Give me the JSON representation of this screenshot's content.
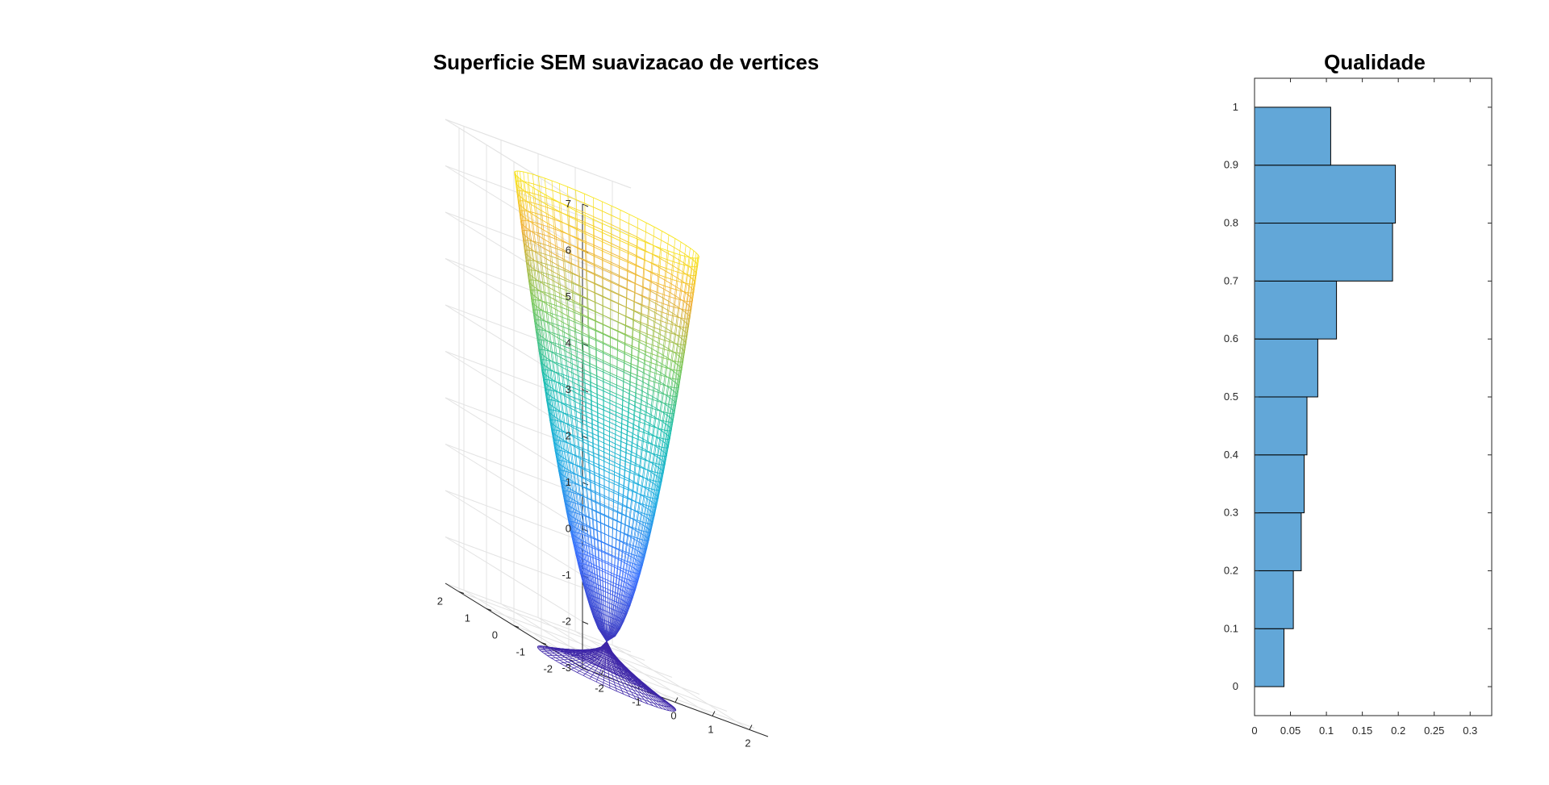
{
  "chart_data": [
    {
      "type": "surface3d",
      "title": "Superficie SEM suavizacao de vertices",
      "xlabel": "",
      "ylabel": "",
      "zlabel": "",
      "xlim": [
        -2.5,
        2.5
      ],
      "ylim": [
        -2.5,
        2.5
      ],
      "zlim": [
        -3,
        7
      ],
      "xticks": [
        -2,
        -1,
        0,
        1,
        2
      ],
      "yticks": [
        -2,
        -1,
        0,
        1,
        2
      ],
      "zticks": [
        -3,
        -2,
        -1,
        0,
        1,
        2,
        3,
        4,
        5,
        6,
        7
      ],
      "grid": true,
      "mesh_style": "wireframe",
      "colormap": "parula",
      "surface": {
        "shape": "goblet",
        "rim_radius": 2.0,
        "rim_height": 6.6,
        "stem_height": -2.6,
        "base_radius": 1.5,
        "base_height": -3.4
      }
    },
    {
      "type": "bar",
      "orientation": "horizontal",
      "title": "Qualidade",
      "xlabel": "",
      "ylabel": "",
      "categories": [
        0.05,
        0.15,
        0.25,
        0.35,
        0.45,
        0.55,
        0.65,
        0.75,
        0.85,
        0.95
      ],
      "bin_edges": [
        0,
        0.1,
        0.2,
        0.3,
        0.4,
        0.5,
        0.6,
        0.7,
        0.8,
        0.9,
        1.0
      ],
      "values": [
        0.041,
        0.054,
        0.065,
        0.069,
        0.073,
        0.088,
        0.114,
        0.192,
        0.196,
        0.106
      ],
      "xlim": [
        0,
        0.33
      ],
      "ylim": [
        -0.05,
        1.05
      ],
      "xticks": [
        0,
        0.05,
        0.1,
        0.15,
        0.2,
        0.25,
        0.3
      ],
      "xticklabels": [
        "0",
        "0.05",
        "0.1",
        "0.15",
        "0.2",
        "0.25",
        "0.3"
      ],
      "yticks": [
        0,
        0.1,
        0.2,
        0.3,
        0.4,
        0.5,
        0.6,
        0.7,
        0.8,
        0.9,
        1
      ],
      "yticklabels": [
        "0",
        "0.1",
        "0.2",
        "0.3",
        "0.4",
        "0.5",
        "0.6",
        "0.7",
        "0.8",
        "0.9",
        "1"
      ],
      "bar_color": "#62a7d8",
      "edge_color": "#000000",
      "grid": false
    }
  ]
}
